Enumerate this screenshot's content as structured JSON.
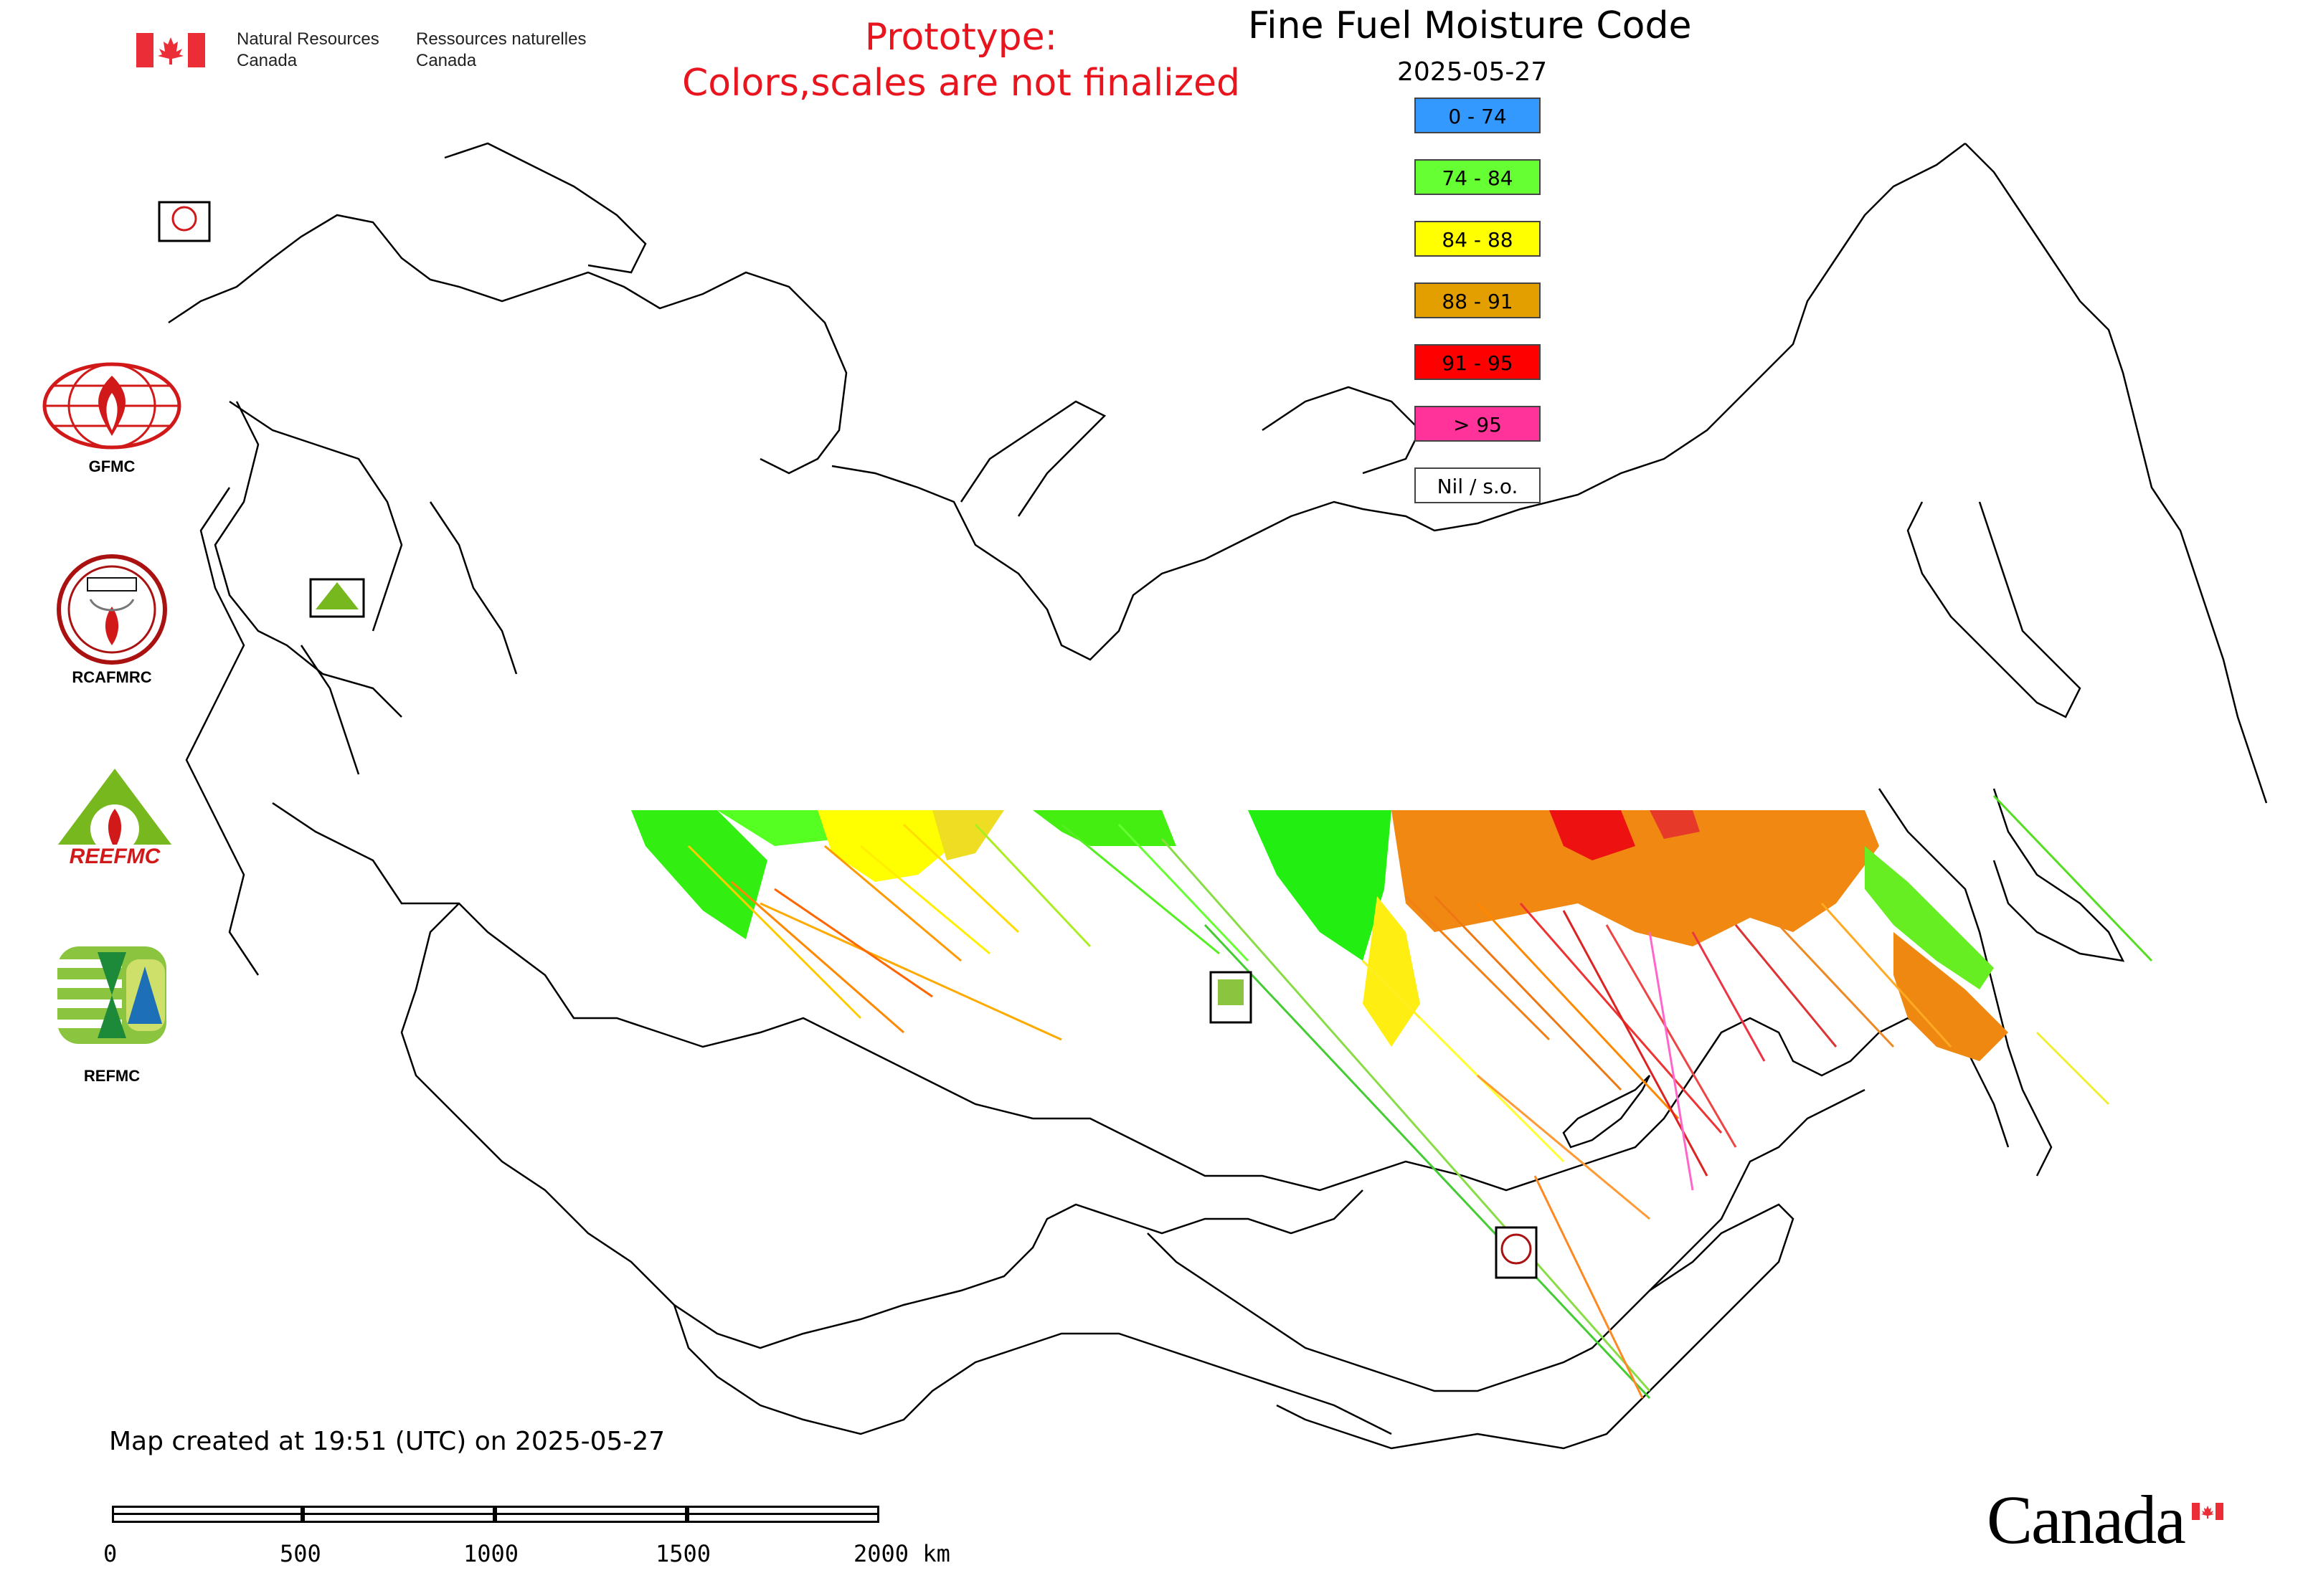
{
  "header": {
    "dept_en_1": "Natural Resources",
    "dept_en_2": "Canada",
    "dept_fr_1": "Ressources naturelles",
    "dept_fr_2": "Canada",
    "prototype_line1": "Prototype:",
    "prototype_line2": "Colors,scales are not finalized"
  },
  "map": {
    "title": "Fine Fuel Moisture Code",
    "date": "2025-05-27",
    "created": "Map created at 19:51 (UTC) on 2025-05-27",
    "legend": [
      {
        "label": "0 - 74",
        "color": "#3399ff"
      },
      {
        "label": "74 - 84",
        "color": "#66ff33"
      },
      {
        "label": "84 - 88",
        "color": "#ffff00"
      },
      {
        "label": "88 - 91",
        "color": "#e39e00"
      },
      {
        "label": "91 - 95",
        "color": "#ff0000"
      },
      {
        "label": "> 95",
        "color": "#ff3399"
      },
      {
        "label": "Nil / s.o.",
        "color": "#ffffff"
      }
    ],
    "scale": {
      "ticks": [
        "0",
        "500",
        "1000",
        "1500",
        "2000 km"
      ]
    }
  },
  "logos": {
    "gfmc": "GFMC",
    "rcafmrc": "RCAFMRC",
    "reefmc": "REEFMC",
    "refmc": "REFMC",
    "gfmc_small": "GFMC",
    "rcafmrc_small": "RCAFMRC",
    "reefmc_small": "REEFMC",
    "refmc_small": "REFMC"
  },
  "footer": {
    "wordmark": "Canada"
  }
}
